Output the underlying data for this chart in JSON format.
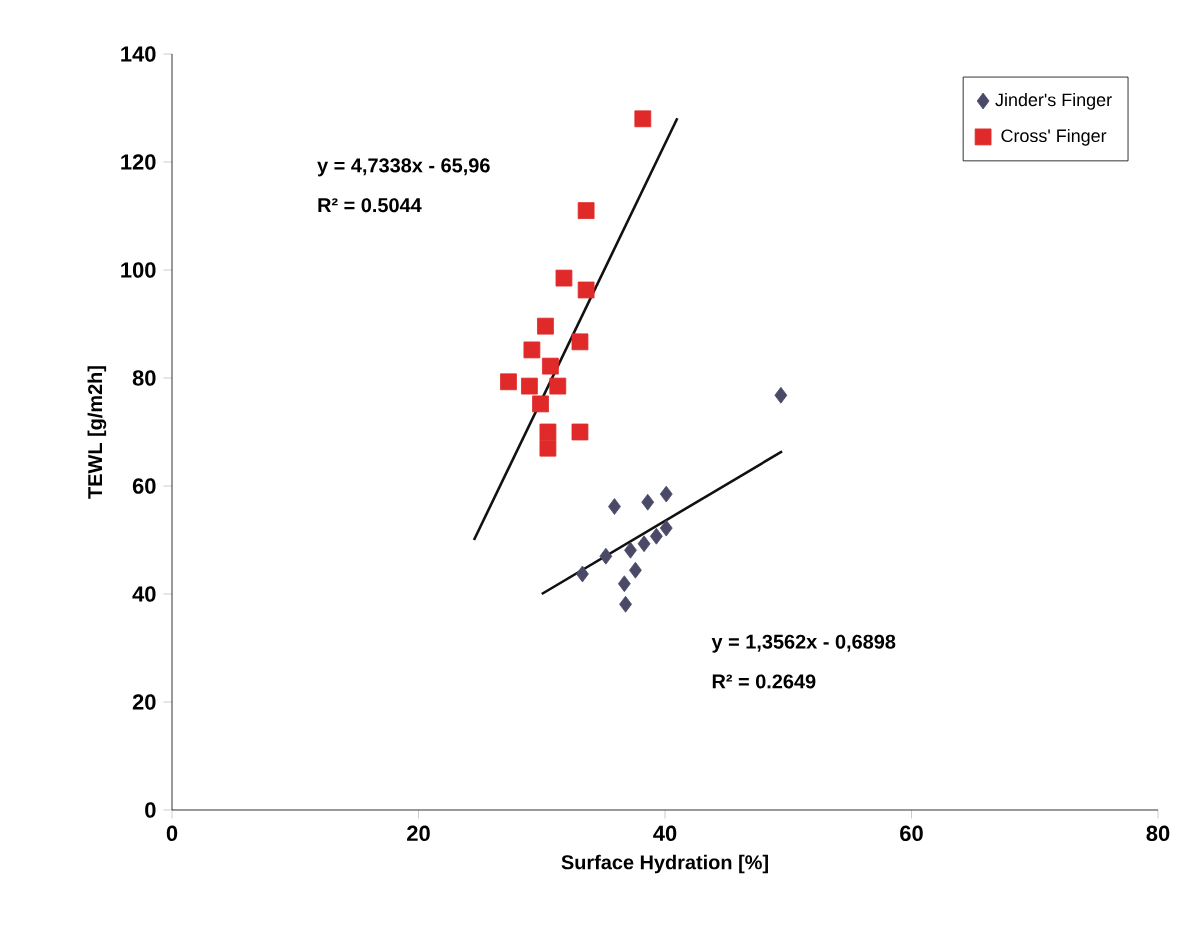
{
  "chart_data": {
    "type": "scatter",
    "xlabel": "Surface Hydration [%]",
    "ylabel": "TEWL [g/m2h]",
    "xlim": [
      0,
      80
    ],
    "ylim": [
      0,
      140
    ],
    "xticks": [
      0,
      20,
      40,
      60,
      80
    ],
    "yticks": [
      0,
      20,
      40,
      60,
      80,
      100,
      120,
      140
    ],
    "grid": false,
    "legend": "top right",
    "annotations": [
      "y = 4,7338x - 65,96",
      "R² = 0.5044",
      "y = 1,3562x - 0,6898",
      "R² = 0.2649"
    ],
    "series": [
      {
        "name": "Jinder's Finger",
        "color": "#4a4a68",
        "marker": "diamond",
        "x": [
          49.4,
          35.9,
          38.6,
          40.1,
          40.1,
          39.3,
          38.3,
          37.2,
          35.2,
          37.6,
          33.3,
          36.7,
          36.8
        ],
        "values": [
          76.8,
          56.2,
          57,
          58.5,
          52.2,
          50.7,
          49.3,
          48.1,
          47,
          44.4,
          43.7,
          41.9,
          38.1
        ]
      },
      {
        "name": "Cross' Finger",
        "color": "#e02a2a",
        "marker": "square",
        "x": [
          38.2,
          33.6,
          31.8,
          33.6,
          30.3,
          33.1,
          29.2,
          30.7,
          27.3,
          29.0,
          31.3,
          29.9,
          30.5,
          33.1,
          30.5
        ],
        "values": [
          128,
          111,
          98.5,
          96.3,
          89.6,
          86.7,
          85.2,
          82.2,
          79.3,
          78.5,
          78.5,
          75.2,
          70,
          70,
          67
        ]
      },
      {
        "type": "line",
        "color": "#111111",
        "marker": "none",
        "x": [
          24.5,
          41
        ],
        "values": [
          50.0,
          128.1
        ]
      },
      {
        "type": "line",
        "color": "#111111",
        "marker": "none",
        "x": [
          30,
          49.5
        ],
        "values": [
          40.0,
          66.4
        ]
      }
    ]
  }
}
